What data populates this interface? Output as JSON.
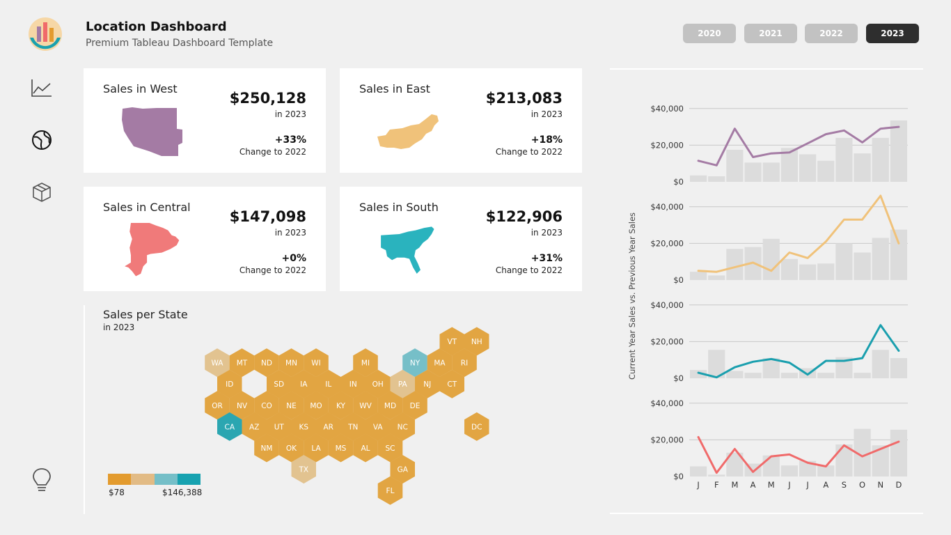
{
  "header": {
    "title": "Location Dashboard",
    "subtitle": "Premium Tableau Dashboard Template",
    "years": [
      "2020",
      "2021",
      "2022",
      "2023"
    ],
    "active_year": "2023"
  },
  "sidebar": {
    "icons": [
      "line-chart-icon",
      "globe-icon",
      "box-icon",
      "lightbulb-icon"
    ]
  },
  "cards": [
    {
      "title": "Sales in West",
      "value": "$250,128",
      "year_label": "in 2023",
      "change": "+33%",
      "change_label": "Change to 2022",
      "color": "#a47ba4",
      "region": "west"
    },
    {
      "title": "Sales in East",
      "value": "$213,083",
      "year_label": "in 2023",
      "change": "+18%",
      "change_label": "Change to 2022",
      "color": "#f0c27a",
      "region": "east"
    },
    {
      "title": "Sales in Central",
      "value": "$147,098",
      "year_label": "in 2023",
      "change": "+0%",
      "change_label": "Change to 2022",
      "color": "#f07a7a",
      "region": "central"
    },
    {
      "title": "Sales in South",
      "value": "$122,906",
      "year_label": "in 2023",
      "change": "+31%",
      "change_label": "Change to 2022",
      "color": "#2ab3be",
      "region": "south"
    }
  ],
  "state_map": {
    "title": "Sales per State",
    "subtitle": "in 2023",
    "legend_min": "$78",
    "legend_max": "$146,388",
    "legend_colors": [
      "#e39b2e",
      "#e2bb85",
      "#75bfc8",
      "#17a2b0"
    ],
    "states": [
      {
        "code": "VT",
        "row": 0,
        "col": 9,
        "color": "#e2a542"
      },
      {
        "code": "NH",
        "row": 0,
        "col": 10,
        "color": "#e2a542"
      },
      {
        "code": "WA",
        "row": 1,
        "col": 0,
        "color": "#e2c390"
      },
      {
        "code": "MT",
        "row": 1,
        "col": 1,
        "color": "#e2a542"
      },
      {
        "code": "ND",
        "row": 1,
        "col": 2,
        "color": "#e2a542"
      },
      {
        "code": "MN",
        "row": 1,
        "col": 3,
        "color": "#e2a542"
      },
      {
        "code": "WI",
        "row": 1,
        "col": 4,
        "color": "#e2a542"
      },
      {
        "code": "MI",
        "row": 1,
        "col": 6,
        "color": "#e2a542"
      },
      {
        "code": "NY",
        "row": 1,
        "col": 8,
        "color": "#76bfc8"
      },
      {
        "code": "MA",
        "row": 1,
        "col": 9,
        "color": "#e2a542"
      },
      {
        "code": "RI",
        "row": 1,
        "col": 10,
        "color": "#e2a542"
      },
      {
        "code": "ID",
        "row": 2,
        "col": 0,
        "color": "#e2a542"
      },
      {
        "code": "SD",
        "row": 2,
        "col": 2,
        "color": "#e2a542"
      },
      {
        "code": "IA",
        "row": 2,
        "col": 3,
        "color": "#e2a542"
      },
      {
        "code": "IL",
        "row": 2,
        "col": 4,
        "color": "#e2a542"
      },
      {
        "code": "IN",
        "row": 2,
        "col": 5,
        "color": "#e2a542"
      },
      {
        "code": "OH",
        "row": 2,
        "col": 6,
        "color": "#e2a542"
      },
      {
        "code": "PA",
        "row": 2,
        "col": 7,
        "color": "#e2c390"
      },
      {
        "code": "NJ",
        "row": 2,
        "col": 8,
        "color": "#e2a542"
      },
      {
        "code": "CT",
        "row": 2,
        "col": 9,
        "color": "#e2a542"
      },
      {
        "code": "OR",
        "row": 3,
        "col": 0,
        "color": "#e2a542"
      },
      {
        "code": "NV",
        "row": 3,
        "col": 1,
        "color": "#e2a542"
      },
      {
        "code": "CO",
        "row": 3,
        "col": 2,
        "color": "#e2a542"
      },
      {
        "code": "NE",
        "row": 3,
        "col": 3,
        "color": "#e2a542"
      },
      {
        "code": "MO",
        "row": 3,
        "col": 4,
        "color": "#e2a542"
      },
      {
        "code": "KY",
        "row": 3,
        "col": 5,
        "color": "#e2a542"
      },
      {
        "code": "WV",
        "row": 3,
        "col": 6,
        "color": "#e2a542"
      },
      {
        "code": "MD",
        "row": 3,
        "col": 7,
        "color": "#e2a542"
      },
      {
        "code": "DE",
        "row": 3,
        "col": 8,
        "color": "#e2a542"
      },
      {
        "code": "CA",
        "row": 4,
        "col": 0,
        "color": "#2ba6b1"
      },
      {
        "code": "AZ",
        "row": 4,
        "col": 1,
        "color": "#e2a542"
      },
      {
        "code": "UT",
        "row": 4,
        "col": 2,
        "color": "#e2a542"
      },
      {
        "code": "KS",
        "row": 4,
        "col": 3,
        "color": "#e2a542"
      },
      {
        "code": "AR",
        "row": 4,
        "col": 4,
        "color": "#e2a542"
      },
      {
        "code": "TN",
        "row": 4,
        "col": 5,
        "color": "#e2a542"
      },
      {
        "code": "VA",
        "row": 4,
        "col": 6,
        "color": "#e2a542"
      },
      {
        "code": "NC",
        "row": 4,
        "col": 7,
        "color": "#e2a542"
      },
      {
        "code": "DC",
        "row": 4,
        "col": 10,
        "color": "#e2a542"
      },
      {
        "code": "NM",
        "row": 5,
        "col": 2,
        "color": "#e2a542"
      },
      {
        "code": "OK",
        "row": 5,
        "col": 3,
        "color": "#e2a542"
      },
      {
        "code": "LA",
        "row": 5,
        "col": 4,
        "color": "#e2a542"
      },
      {
        "code": "MS",
        "row": 5,
        "col": 5,
        "color": "#e2a542"
      },
      {
        "code": "AL",
        "row": 5,
        "col": 6,
        "color": "#e2a542"
      },
      {
        "code": "SC",
        "row": 5,
        "col": 7,
        "color": "#e2a542"
      },
      {
        "code": "TX",
        "row": 6,
        "col": 3,
        "color": "#e2c390"
      },
      {
        "code": "GA",
        "row": 6,
        "col": 7,
        "color": "#e2a542"
      },
      {
        "code": "FL",
        "row": 7,
        "col": 7,
        "color": "#e2a542"
      }
    ]
  },
  "chart_data": {
    "type": "line",
    "ylabel": "Current Year Sales vs. Previous Year Sales",
    "categories": [
      "J",
      "F",
      "M",
      "A",
      "M",
      "J",
      "J",
      "A",
      "S",
      "O",
      "N",
      "D"
    ],
    "ytick_labels": [
      "$0",
      "$20,000",
      "$40,000"
    ],
    "ylim": [
      0,
      40000
    ],
    "series": [
      {
        "region": "West",
        "color": "#a47ba4",
        "current": [
          11500,
          9000,
          29000,
          13500,
          15500,
          16000,
          21000,
          26000,
          28000,
          21500,
          29000,
          30000
        ],
        "previous": [
          3500,
          3000,
          17500,
          10500,
          10500,
          18500,
          15000,
          11500,
          24000,
          15500,
          24000,
          33500
        ]
      },
      {
        "region": "East",
        "color": "#f0c27a",
        "current": [
          5000,
          4500,
          7000,
          9500,
          5000,
          15000,
          12000,
          21000,
          33000,
          33000,
          46000,
          20000
        ],
        "previous": [
          4500,
          2500,
          17000,
          18000,
          22500,
          11500,
          8500,
          9000,
          20000,
          15000,
          23000,
          27500
        ]
      },
      {
        "region": "South",
        "color": "#1a9fae",
        "current": [
          3000,
          500,
          6000,
          9000,
          10500,
          8500,
          2000,
          9500,
          9500,
          11000,
          29000,
          15000
        ],
        "previous": [
          4500,
          15500,
          4000,
          3000,
          11000,
          3000,
          5500,
          3000,
          11500,
          3000,
          15500,
          11000
        ]
      },
      {
        "region": "Central",
        "color": "#f06a6a",
        "current": [
          21500,
          2000,
          15000,
          2500,
          11000,
          12000,
          7500,
          5500,
          17000,
          11000,
          15000,
          19000
        ],
        "previous": [
          5500,
          1000,
          13000,
          7000,
          11500,
          6000,
          8500,
          6000,
          17500,
          26000,
          17000,
          25500
        ]
      }
    ]
  }
}
